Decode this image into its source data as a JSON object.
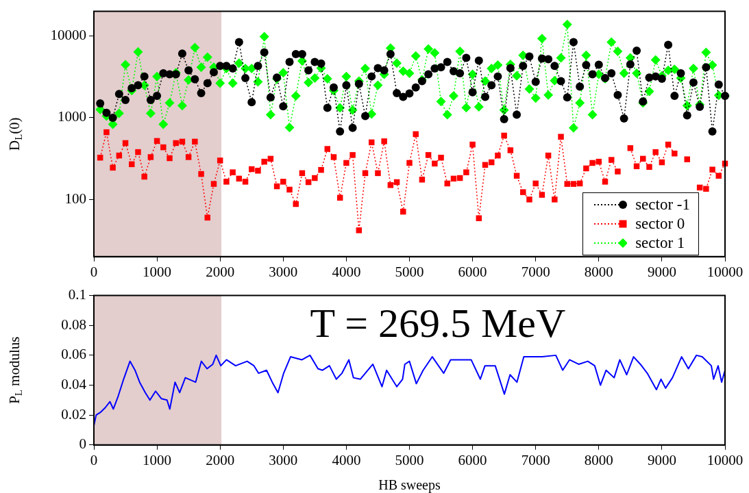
{
  "chart_data": [
    {
      "type": "line",
      "ylabel": "D$_{L}$(0)",
      "log": true,
      "legend": "bottom right",
      "line_style": "dotted",
      "x": [
        100,
        200,
        300,
        400,
        500,
        600,
        700,
        800,
        900,
        1000,
        1100,
        1200,
        1300,
        1400,
        1500,
        1600,
        1700,
        1800,
        1900,
        2000,
        2100,
        2200,
        2300,
        2400,
        2500,
        2600,
        2700,
        2800,
        2900,
        3000,
        3100,
        3200,
        3300,
        3400,
        3500,
        3600,
        3700,
        3800,
        3900,
        4000,
        4100,
        4200,
        4300,
        4400,
        4500,
        4600,
        4700,
        4800,
        4900,
        5000,
        5100,
        5200,
        5300,
        5400,
        5500,
        5600,
        5700,
        5800,
        5900,
        6000,
        6100,
        6200,
        6300,
        6400,
        6500,
        6600,
        6700,
        6800,
        6900,
        7000,
        7100,
        7200,
        7300,
        7400,
        7500,
        7600,
        7700,
        7800,
        7900,
        8000,
        8100,
        8200,
        8300,
        8400,
        8500,
        8600,
        8700,
        8800,
        8900,
        9000,
        9100,
        9200,
        9300,
        9400,
        9500,
        9600,
        9700,
        9800,
        9900,
        10000
      ],
      "series": [
        {
          "name": "sector -1",
          "color": "#000000",
          "marker": "circle",
          "values": [
            1500,
            1150,
            1000,
            1950,
            1650,
            2300,
            2500,
            3200,
            1650,
            1850,
            3500,
            3400,
            3400,
            6100,
            3800,
            2950,
            2000,
            2650,
            3600,
            4300,
            4300,
            4000,
            8400,
            3050,
            1550,
            4300,
            6300,
            1770,
            3100,
            1380,
            4800,
            6000,
            6000,
            3800,
            4800,
            4600,
            1320,
            2350,
            680,
            2500,
            750,
            2600,
            1050,
            3200,
            4050,
            3800,
            6000,
            2000,
            1800,
            1980,
            2350,
            2800,
            3400,
            4000,
            4150,
            4800,
            3700,
            3500,
            5400,
            2050,
            5000,
            1800,
            2500,
            3200,
            960,
            4050,
            1090,
            4300,
            5600,
            2750,
            5300,
            5200,
            4300,
            2800,
            1770,
            8400,
            2400,
            4400,
            3400,
            4450,
            3050,
            3500,
            1900,
            980,
            4500,
            6600,
            1580,
            3100,
            3200,
            3000,
            7800,
            1850,
            3500,
            1070,
            2700,
            1360,
            4150,
            680,
            2550,
            1850
          ]
        },
        {
          "name": "sector 0",
          "color": "#ff0000",
          "marker": "square",
          "values": [
            325,
            665,
            245,
            345,
            490,
            270,
            380,
            190,
            330,
            520,
            435,
            320,
            490,
            510,
            330,
            510,
            205,
            60,
            155,
            300,
            165,
            215,
            180,
            165,
            235,
            225,
            290,
            315,
            145,
            165,
            132,
            88,
            210,
            163,
            183,
            230,
            415,
            330,
            105,
            280,
            350,
            42,
            210,
            500,
            210,
            515,
            150,
            163,
            71,
            280,
            630,
            175,
            350,
            275,
            325,
            157,
            180,
            183,
            215,
            470,
            59,
            265,
            285,
            345,
            605,
            400,
            195,
            123,
            100,
            157,
            114,
            345,
            100,
            585,
            155,
            155,
            157,
            240,
            280,
            290,
            165,
            305,
            220,
            null,
            425,
            255,
            315,
            250,
            380,
            285,
            470,
            365,
            null,
            310,
            null,
            140,
            135,
            232,
            195,
            275
          ]
        },
        {
          "name": "sector 1",
          "color": "#00ff00",
          "marker": "diamond",
          "values": [
            1260,
            1050,
            830,
            1130,
            4450,
            2150,
            6400,
            2500,
            1130,
            3200,
            830,
            1520,
            3550,
            1410,
            2900,
            7200,
            4150,
            5500,
            4150,
            2650,
            4000,
            2650,
            4650,
            4000,
            4000,
            2750,
            9800,
            1090,
            3000,
            3550,
            760,
            1850,
            4950,
            2700,
            3050,
            4050,
            3000,
            2150,
            1320,
            3200,
            1240,
            2800,
            4000,
            1110,
            2500,
            3400,
            7100,
            4650,
            3700,
            3500,
            5700,
            2900,
            6950,
            6200,
            1580,
            1090,
            1850,
            6500,
            1330,
            3400,
            1360,
            2800,
            4000,
            4400,
            1240,
            4500,
            3250,
            5800,
            2250,
            1740,
            9300,
            1900,
            2850,
            5400,
            13800,
            750,
            1520,
            5800,
            1090,
            3400,
            3000,
            8400,
            6500,
            3500,
            5400,
            3500,
            1520,
            2100,
            5100,
            3250,
            3800,
            3900,
            3050,
            1410,
            4000,
            1450,
            6300,
            4400,
            1880,
            1850
          ]
        }
      ],
      "xlim": [
        0,
        10000
      ],
      "xticks": [
        0,
        1000,
        2000,
        3000,
        4000,
        5000,
        6000,
        7000,
        8000,
        9000,
        10000
      ],
      "ylim": [
        20,
        20000
      ],
      "yticks": [
        100,
        1000,
        10000
      ],
      "bands": [
        {
          "axis": "x",
          "from": 0,
          "to": 2020,
          "color": "#dcc0c0"
        }
      ]
    },
    {
      "type": "line",
      "xlabel": "HB sweeps",
      "ylabel": "P$_{L}$ modulus",
      "series": [
        {
          "color": "#0000ff",
          "x": [
            0,
            36,
            109,
            181,
            254,
            308,
            380,
            471,
            572,
            652,
            725,
            815,
            888,
            978,
            1069,
            1159,
            1203,
            1286,
            1359,
            1449,
            1612,
            1703,
            1793,
            1884,
            1938,
            2011,
            2101,
            2246,
            2428,
            2536,
            2609,
            2736,
            2826,
            2917,
            3007,
            3116,
            3297,
            3424,
            3551,
            3623,
            3732,
            3841,
            3931,
            4040,
            4112,
            4221,
            4420,
            4565,
            4638,
            4800,
            4891,
            4927,
            5000,
            5109,
            5217,
            5362,
            5543,
            5652,
            5833,
            5978,
            6123,
            6196,
            6359,
            6504,
            6594,
            6703,
            6812,
            6957,
            7102,
            7319,
            7428,
            7536,
            7681,
            7826,
            7935,
            8026,
            8116,
            8243,
            8333,
            8442,
            8551,
            8659,
            8768,
            8913,
            8985,
            9058,
            9167,
            9312,
            9420,
            9547,
            9638,
            9783,
            9819,
            9891,
            9946,
            10000
          ],
          "values": [
            0.013,
            0.02,
            0.022,
            0.025,
            0.029,
            0.024,
            0.032,
            0.044,
            0.056,
            0.05,
            0.042,
            0.035,
            0.03,
            0.036,
            0.031,
            0.03,
            0.024,
            0.042,
            0.035,
            0.045,
            0.042,
            0.056,
            0.051,
            0.054,
            0.06,
            0.053,
            0.057,
            0.053,
            0.056,
            0.053,
            0.048,
            0.05,
            0.042,
            0.035,
            0.048,
            0.059,
            0.057,
            0.06,
            0.051,
            0.05,
            0.053,
            0.044,
            0.048,
            0.057,
            0.045,
            0.044,
            0.054,
            0.039,
            0.05,
            0.039,
            0.044,
            0.054,
            0.056,
            0.041,
            0.05,
            0.059,
            0.048,
            0.057,
            0.057,
            0.057,
            0.044,
            0.053,
            0.053,
            0.034,
            0.047,
            0.042,
            0.059,
            0.059,
            0.059,
            0.06,
            0.05,
            0.057,
            0.054,
            0.056,
            0.053,
            0.04,
            0.05,
            0.045,
            0.057,
            0.047,
            0.059,
            0.054,
            0.048,
            0.037,
            0.044,
            0.038,
            0.045,
            0.059,
            0.051,
            0.06,
            0.059,
            0.053,
            0.044,
            0.053,
            0.042,
            0.05
          ]
        }
      ],
      "xlim": [
        0,
        10000
      ],
      "xticks": [
        0,
        1000,
        2000,
        3000,
        4000,
        5000,
        6000,
        7000,
        8000,
        9000,
        10000
      ],
      "ylim": [
        0,
        0.1
      ],
      "yticks": [
        0,
        0.02,
        0.04,
        0.06,
        0.08,
        0.1
      ],
      "bands": [
        {
          "axis": "x",
          "from": 0,
          "to": 2020,
          "color": "#dcc0c0"
        }
      ],
      "annotations": [
        "T = 269.5 MeV"
      ]
    }
  ]
}
